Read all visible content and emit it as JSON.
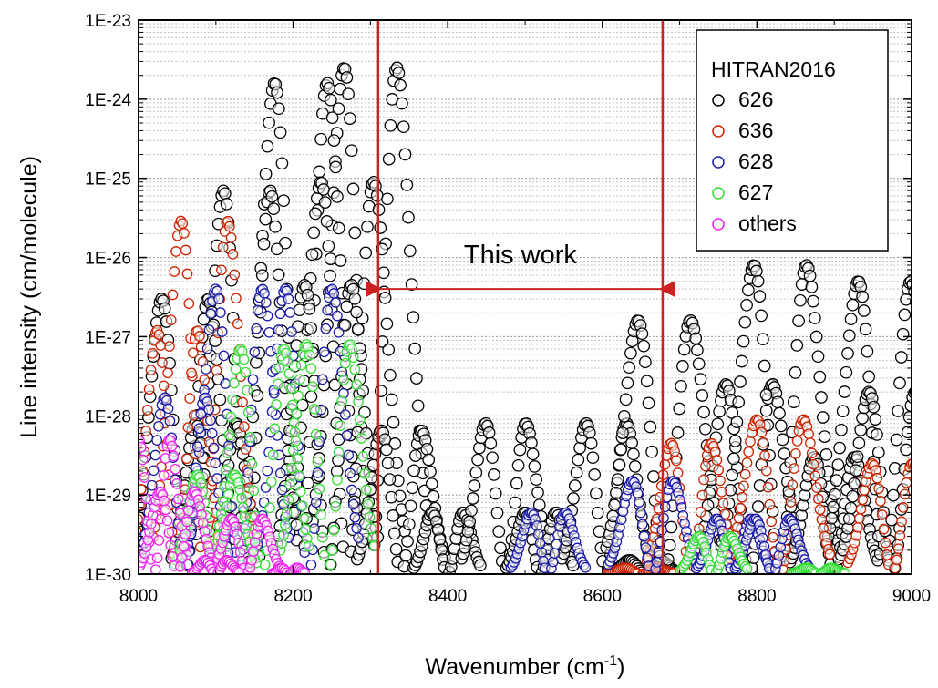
{
  "chart_data": {
    "type": "scatter",
    "xlabel": "Wavenumber (cm",
    "xlabel_sup": "-1",
    "xlabel_end": ")",
    "ylabel": "Line intensity (cm/molecule)",
    "xlim": [
      8000,
      9000
    ],
    "ylim": [
      1e-30,
      1e-23
    ],
    "y_scale": "log",
    "x_ticks": [
      8000,
      8200,
      8400,
      8600,
      8800,
      9000
    ],
    "x_tick_labels": [
      "8000",
      "8200",
      "8400",
      "8600",
      "8800",
      "9000"
    ],
    "y_ticks": [
      1e-30,
      1e-29,
      1e-28,
      1e-27,
      1e-26,
      1e-25,
      1e-24,
      1e-23
    ],
    "y_tick_labels": [
      "1E-30",
      "1E-29",
      "1E-28",
      "1E-27",
      "1E-26",
      "1E-25",
      "1E-24",
      "1E-23"
    ],
    "grid": "horizontal dotted",
    "legend": {
      "title": "HITRAN2016",
      "placement": "top-right"
    },
    "marker": "open-circle",
    "series": [
      {
        "name": "626",
        "color": "#000000",
        "bands": [
          {
            "center": 8300,
            "peak": 2.5e-24,
            "width": 34
          },
          {
            "center": 8210,
            "peak": 1.6e-24,
            "width": 34
          },
          {
            "center": 8270,
            "peak": 9e-26,
            "width": 34
          },
          {
            "center": 8140,
            "peak": 7e-26,
            "width": 30
          },
          {
            "center": 8245,
            "peak": 4.5e-27,
            "width": 30
          },
          {
            "center": 8060,
            "peak": 3e-27,
            "width": 30
          },
          {
            "center": 8100,
            "peak": 8e-29,
            "width": 26
          },
          {
            "center": 8340,
            "peak": 6.5e-29,
            "width": 26
          },
          {
            "center": 8400,
            "peak": 6e-30,
            "width": 20
          },
          {
            "center": 8475,
            "peak": 8e-29,
            "width": 26
          },
          {
            "center": 8520,
            "peak": 6e-30,
            "width": 20
          },
          {
            "center": 8605,
            "peak": 8e-29,
            "width": 26
          },
          {
            "center": 8655,
            "peak": 1.5e-30,
            "width": 20
          },
          {
            "center": 8680,
            "peak": 1.6e-27,
            "width": 34
          },
          {
            "center": 8790,
            "peak": 2.5e-28,
            "width": 30
          },
          {
            "center": 8830,
            "peak": 8e-27,
            "width": 34
          },
          {
            "center": 8900,
            "peak": 3e-29,
            "width": 26
          },
          {
            "center": 8965,
            "peak": 5e-27,
            "width": 34
          },
          {
            "center": 8975,
            "peak": 2e-28,
            "width": 30
          }
        ]
      },
      {
        "name": "636",
        "color": "#cc2200",
        "bands": [
          {
            "center": 8085,
            "peak": 2.9e-26,
            "width": 30
          },
          {
            "center": 8050,
            "peak": 1.2e-27,
            "width": 26
          },
          {
            "center": 8650,
            "peak": 1.2e-30,
            "width": 20
          },
          {
            "center": 8715,
            "peak": 4.5e-29,
            "width": 26
          },
          {
            "center": 8830,
            "peak": 9e-29,
            "width": 30
          },
          {
            "center": 8975,
            "peak": 2.5e-29,
            "width": 26
          }
        ]
      },
      {
        "name": "628",
        "color": "#1a1aaa",
        "bands": [
          {
            "center": 8130,
            "peak": 4e-27,
            "width": 30
          },
          {
            "center": 8220,
            "peak": 4e-27,
            "width": 30
          },
          {
            "center": 8060,
            "peak": 1.7e-28,
            "width": 26
          },
          {
            "center": 8530,
            "peak": 6e-30,
            "width": 22
          },
          {
            "center": 8665,
            "peak": 1.5e-29,
            "width": 26
          },
          {
            "center": 8770,
            "peak": 5e-30,
            "width": 22
          },
          {
            "center": 8820,
            "peak": 5e-30,
            "width": 22
          }
        ]
      },
      {
        "name": "627",
        "color": "#33dd33",
        "bands": [
          {
            "center": 8160,
            "peak": 7e-28,
            "width": 28
          },
          {
            "center": 8245,
            "peak": 8e-28,
            "width": 28
          },
          {
            "center": 8100,
            "peak": 1.8e-29,
            "width": 24
          },
          {
            "center": 8745,
            "peak": 3e-30,
            "width": 20
          },
          {
            "center": 8880,
            "peak": 1.2e-30,
            "width": 16
          }
        ]
      },
      {
        "name": "others",
        "color": "#ee22ee",
        "bands": [
          {
            "center": 8020,
            "peak": 5e-29,
            "width": 20
          },
          {
            "center": 8050,
            "peak": 1.1e-29,
            "width": 22
          },
          {
            "center": 8140,
            "peak": 5e-30,
            "width": 20
          },
          {
            "center": 8100,
            "peak": 1.5e-30,
            "width": 14
          },
          {
            "center": 8195,
            "peak": 1.2e-30,
            "width": 10
          }
        ]
      }
    ],
    "annotations": [
      {
        "type": "vertical-line",
        "x": 8310,
        "color": "#cc2222"
      },
      {
        "type": "vertical-line",
        "x": 8678,
        "color": "#cc2222"
      },
      {
        "type": "double-arrow",
        "x1": 8313,
        "x2": 8675,
        "y": 4e-27,
        "color": "#cc2222",
        "text": "This work",
        "text_y": 1.1e-26
      }
    ]
  }
}
